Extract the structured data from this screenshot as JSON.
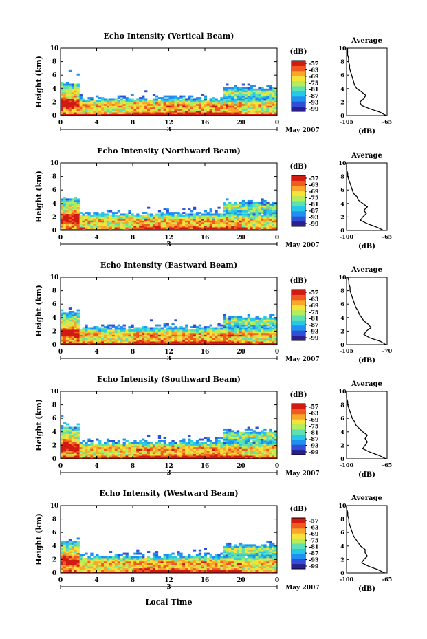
{
  "figure": {
    "xlabel": "Local Time",
    "date_label": "May 2007",
    "colorbar_unit": "(dB)",
    "colorbar_ticks": [
      -57,
      -63,
      -69,
      -75,
      -81,
      -87,
      -93,
      -99
    ],
    "colormap": [
      "#2b1f8f",
      "#2f4fd6",
      "#1f8ff0",
      "#27c7e8",
      "#5fe0b0",
      "#b5ec5a",
      "#f6e23a",
      "#f9a72a",
      "#f05a1f",
      "#d01a12"
    ]
  },
  "chart_data": [
    {
      "type": "heatmap",
      "title": "Echo Intensity (Vertical Beam)",
      "ylabel": "Height (km)",
      "x_ticks": [
        "0",
        "4",
        "8",
        "12",
        "16",
        "20",
        "0"
      ],
      "xlim": [
        0,
        24
      ],
      "y_ticks": [
        0,
        2,
        4,
        6,
        8,
        10
      ],
      "ylim": [
        0,
        10
      ],
      "date_marker": "3",
      "profile": {
        "title": "Average",
        "xlabel": "(dB)",
        "x_ticks": [
          -105,
          -65
        ],
        "xlim": [
          -105,
          -65
        ],
        "ylim": [
          0,
          10
        ],
        "height": [
          0,
          0.5,
          1,
          1.5,
          2,
          2.5,
          3,
          3.5,
          4,
          4.5,
          5,
          5.5,
          6,
          6.5,
          7,
          7.5,
          8,
          8.5,
          9,
          9.5,
          10
        ],
        "value": [
          -66,
          -72,
          -82,
          -90,
          -92,
          -88,
          -86,
          -90,
          -95,
          -97,
          -98,
          -99,
          -100,
          -101,
          -102,
          -102,
          -103,
          -103,
          -104,
          -104,
          -104
        ]
      }
    },
    {
      "type": "heatmap",
      "title": "Echo Intensity (Northward Beam)",
      "ylabel": "Height (km)",
      "x_ticks": [
        "0",
        "4",
        "8",
        "12",
        "16",
        "20",
        "0"
      ],
      "xlim": [
        0,
        24
      ],
      "y_ticks": [
        0,
        2,
        4,
        6,
        8,
        10
      ],
      "ylim": [
        0,
        10
      ],
      "date_marker": "3",
      "profile": {
        "title": "Average",
        "xlabel": "(dB)",
        "x_ticks": [
          -100,
          -65
        ],
        "xlim": [
          -100,
          -65
        ],
        "ylim": [
          0,
          10
        ],
        "height": [
          0,
          0.5,
          1,
          1.5,
          2,
          2.5,
          3,
          3.5,
          4,
          4.5,
          5,
          5.5,
          6,
          6.5,
          7,
          7.5,
          8,
          8.5,
          9,
          9.5,
          10
        ],
        "value": [
          -68,
          -74,
          -82,
          -88,
          -86,
          -83,
          -85,
          -82,
          -86,
          -90,
          -91,
          -94,
          -95,
          -96,
          -97,
          -98,
          -99,
          -99,
          -100,
          -100,
          -100
        ]
      }
    },
    {
      "type": "heatmap",
      "title": "Echo Intensity (Eastward Beam)",
      "ylabel": "Height (km)",
      "x_ticks": [
        "0",
        "4",
        "8",
        "12",
        "16",
        "20",
        "0"
      ],
      "xlim": [
        0,
        24
      ],
      "y_ticks": [
        0,
        2,
        4,
        6,
        8,
        10
      ],
      "ylim": [
        0,
        10
      ],
      "date_marker": "3",
      "profile": {
        "title": "Average",
        "xlabel": "(dB)",
        "x_ticks": [
          -105,
          -70
        ],
        "xlim": [
          -105,
          -70
        ],
        "ylim": [
          0,
          10
        ],
        "height": [
          0,
          0.5,
          1,
          1.5,
          2,
          2.5,
          3,
          3.5,
          4,
          4.5,
          5,
          5.5,
          6,
          6.5,
          7,
          7.5,
          8,
          8.5,
          9,
          9.5,
          10
        ],
        "value": [
          -71,
          -76,
          -85,
          -90,
          -88,
          -84,
          -86,
          -90,
          -92,
          -94,
          -95,
          -97,
          -98,
          -99,
          -100,
          -101,
          -102,
          -102,
          -103,
          -103,
          -104
        ]
      }
    },
    {
      "type": "heatmap",
      "title": "Echo Intensity (Southward Beam)",
      "ylabel": "Height (km)",
      "x_ticks": [
        "0",
        "4",
        "8",
        "12",
        "16",
        "20",
        "0"
      ],
      "xlim": [
        0,
        24
      ],
      "y_ticks": [
        0,
        2,
        4,
        6,
        8,
        10
      ],
      "ylim": [
        0,
        10
      ],
      "date_marker": "3",
      "profile": {
        "title": "Average",
        "xlabel": "(dB)",
        "x_ticks": [
          -100,
          -65
        ],
        "xlim": [
          -100,
          -65
        ],
        "ylim": [
          0,
          10
        ],
        "height": [
          0,
          0.5,
          1,
          1.5,
          2,
          2.5,
          3,
          3.5,
          4,
          4.5,
          5,
          5.5,
          6,
          6.5,
          7,
          7.5,
          8,
          8.5,
          9,
          9.5,
          10
        ],
        "value": [
          -66,
          -72,
          -80,
          -86,
          -84,
          -82,
          -84,
          -82,
          -86,
          -89,
          -92,
          -93,
          -95,
          -96,
          -97,
          -98,
          -99,
          -99,
          -100,
          -100,
          -100
        ]
      }
    },
    {
      "type": "heatmap",
      "title": "Echo Intensity (Westward Beam)",
      "ylabel": "Height (km)",
      "x_ticks": [
        "0",
        "4",
        "8",
        "12",
        "16",
        "20",
        "0"
      ],
      "xlim": [
        0,
        24
      ],
      "y_ticks": [
        0,
        2,
        4,
        6,
        8,
        10
      ],
      "ylim": [
        0,
        10
      ],
      "date_marker": "3",
      "profile": {
        "title": "Average",
        "xlabel": "(dB)",
        "x_ticks": [
          -100,
          -65
        ],
        "xlim": [
          -100,
          -65
        ],
        "ylim": [
          0,
          10
        ],
        "height": [
          0,
          0.5,
          1,
          1.5,
          2,
          2.5,
          3,
          3.5,
          4,
          4.5,
          5,
          5.5,
          6,
          6.5,
          7,
          7.5,
          8,
          8.5,
          9,
          9.5,
          10
        ],
        "value": [
          -67,
          -73,
          -81,
          -87,
          -85,
          -82,
          -84,
          -84,
          -88,
          -90,
          -92,
          -94,
          -95,
          -96,
          -97,
          -98,
          -98,
          -99,
          -99,
          -100,
          -100
        ]
      }
    }
  ]
}
